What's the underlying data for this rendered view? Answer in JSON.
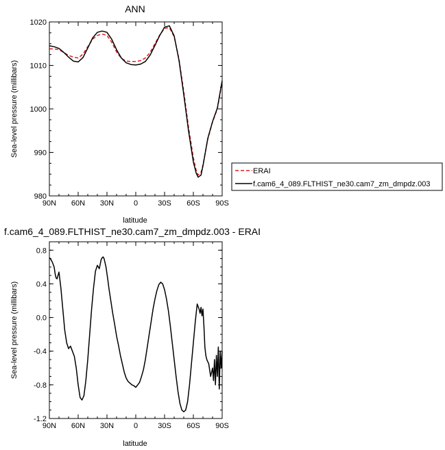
{
  "chart_data": [
    {
      "type": "line",
      "title": "ANN",
      "xlabel": "latitude",
      "ylabel": "Sea-level pressure (millibars)",
      "xlim": [
        90,
        -90
      ],
      "ylim": [
        980,
        1020
      ],
      "x_ticks": [
        90,
        60,
        30,
        0,
        -30,
        -60,
        -90
      ],
      "x_tick_labels": [
        "90N",
        "60N",
        "30N",
        "0",
        "30S",
        "60S",
        "90S"
      ],
      "y_ticks": [
        980,
        990,
        1000,
        1010,
        1020
      ],
      "y_tick_labels": [
        "980",
        "990",
        "1000",
        "1010",
        "1020"
      ],
      "legend_position": "outside-right",
      "series": [
        {
          "name": "ERAI",
          "color": "#e31a1c",
          "dash": "dashed",
          "x": [
            90,
            85,
            80,
            75,
            70,
            65,
            60,
            55,
            50,
            45,
            40,
            35,
            30,
            25,
            20,
            15,
            10,
            5,
            0,
            -5,
            -10,
            -15,
            -20,
            -25,
            -30,
            -35,
            -40,
            -45,
            -50,
            -55,
            -60,
            -63,
            -65,
            -68,
            -70,
            -75,
            -80,
            -85,
            -90
          ],
          "values": [
            1013.8,
            1013.8,
            1013.6,
            1013.0,
            1012.3,
            1011.9,
            1011.7,
            1012.6,
            1014.3,
            1016.0,
            1016.9,
            1017.2,
            1016.9,
            1015.3,
            1013.1,
            1011.6,
            1011.0,
            1010.9,
            1010.9,
            1011.1,
            1011.7,
            1013.0,
            1015.0,
            1017.0,
            1018.5,
            1018.7,
            1016.6,
            1011.5,
            1004.0,
            995.7,
            988.8,
            985.8,
            984.8,
            985.4,
            987.1,
            993.0,
            997.0,
            1000.0,
            1006.2
          ]
        },
        {
          "name": "f.cam6_4_089.FLTHIST_ne30.cam7_zm_dmpdz.003",
          "color": "#000000",
          "dash": "solid",
          "x": [
            90,
            85,
            80,
            75,
            70,
            65,
            60,
            55,
            50,
            45,
            40,
            35,
            30,
            25,
            20,
            15,
            10,
            5,
            0,
            -5,
            -10,
            -15,
            -20,
            -25,
            -30,
            -35,
            -40,
            -45,
            -50,
            -55,
            -60,
            -63,
            -65,
            -68,
            -70,
            -75,
            -80,
            -85,
            -90
          ],
          "values": [
            1014.5,
            1014.3,
            1013.9,
            1013.0,
            1011.9,
            1011.0,
            1010.8,
            1011.8,
            1014.0,
            1016.3,
            1017.6,
            1017.9,
            1017.6,
            1016.0,
            1013.6,
            1011.7,
            1010.6,
            1010.2,
            1010.1,
            1010.3,
            1010.9,
            1012.4,
            1014.6,
            1016.9,
            1018.8,
            1019.1,
            1016.8,
            1011.2,
            1003.3,
            994.9,
            987.8,
            985.2,
            984.3,
            984.8,
            986.9,
            993.2,
            997.1,
            1000.2,
            1006.5
          ]
        }
      ]
    },
    {
      "type": "line",
      "title": "f.cam6_4_089.FLTHIST_ne30.cam7_zm_dmpdz.003 - ERAI",
      "xlabel": "latitude",
      "ylabel": "Sea-level pressure (millibars)",
      "xlim": [
        90,
        -90
      ],
      "ylim": [
        -1.2,
        0.9
      ],
      "x_ticks": [
        90,
        60,
        30,
        0,
        -30,
        -60,
        -90
      ],
      "x_tick_labels": [
        "90N",
        "60N",
        "30N",
        "0",
        "30S",
        "60S",
        "90S"
      ],
      "y_ticks": [
        -1.2,
        -0.8,
        -0.4,
        0.0,
        0.4,
        0.8
      ],
      "y_tick_labels": [
        "-1.2",
        "-0.8",
        "-0.4",
        "0.0",
        "0.4",
        "0.8"
      ],
      "series": [
        {
          "color": "#000000",
          "dash": "solid",
          "x": [
            90,
            89,
            87,
            85,
            84,
            83,
            82,
            80,
            78,
            76,
            74,
            72,
            70,
            68,
            66,
            64,
            62,
            60,
            58,
            56,
            54,
            52,
            50,
            48,
            46,
            44,
            42,
            40,
            38,
            36,
            35,
            34,
            33,
            32,
            31,
            30,
            29,
            28,
            26,
            24,
            22,
            20,
            18,
            16,
            14,
            12,
            10,
            8,
            6,
            4,
            2,
            0,
            -2,
            -4,
            -6,
            -8,
            -10,
            -12,
            -14,
            -16,
            -18,
            -20,
            -22,
            -24,
            -26,
            -28,
            -30,
            -32,
            -34,
            -36,
            -38,
            -40,
            -42,
            -44,
            -46,
            -48,
            -50,
            -52,
            -54,
            -56,
            -58,
            -60,
            -62,
            -64,
            -66,
            -67,
            -68,
            -69,
            -70,
            -71,
            -72,
            -73,
            -74,
            -76,
            -78,
            -80,
            -81,
            -82,
            -83,
            -84,
            -85,
            -86,
            -87,
            -88,
            -89,
            -90
          ],
          "values": [
            0.71,
            0.7,
            0.66,
            0.6,
            0.52,
            0.47,
            0.46,
            0.54,
            0.35,
            0.1,
            -0.15,
            -0.3,
            -0.37,
            -0.34,
            -0.4,
            -0.46,
            -0.6,
            -0.8,
            -0.95,
            -0.98,
            -0.93,
            -0.75,
            -0.5,
            -0.2,
            0.1,
            0.35,
            0.55,
            0.62,
            0.58,
            0.69,
            0.71,
            0.72,
            0.7,
            0.65,
            0.6,
            0.52,
            0.44,
            0.35,
            0.2,
            0.05,
            -0.08,
            -0.22,
            -0.33,
            -0.45,
            -0.55,
            -0.65,
            -0.72,
            -0.76,
            -0.78,
            -0.8,
            -0.81,
            -0.83,
            -0.8,
            -0.77,
            -0.7,
            -0.62,
            -0.5,
            -0.35,
            -0.2,
            -0.05,
            0.1,
            0.22,
            0.32,
            0.39,
            0.42,
            0.4,
            0.33,
            0.22,
            0.08,
            -0.1,
            -0.3,
            -0.5,
            -0.7,
            -0.88,
            -1.02,
            -1.1,
            -1.12,
            -1.1,
            -1.0,
            -0.8,
            -0.55,
            -0.3,
            -0.05,
            0.16,
            0.1,
            0.05,
            0.12,
            0.02,
            0.1,
            -0.1,
            -0.35,
            -0.45,
            -0.5,
            -0.55,
            -0.7,
            -0.6,
            -0.75,
            -0.5,
            -0.8,
            -0.45,
            -0.7,
            -0.35,
            -0.85,
            -0.4,
            -0.6,
            -0.4
          ]
        }
      ]
    }
  ]
}
